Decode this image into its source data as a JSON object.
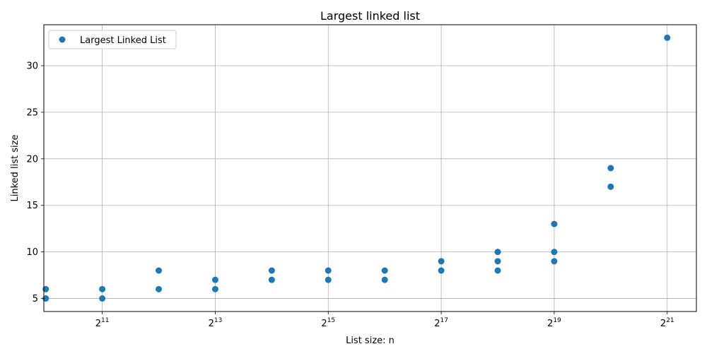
{
  "chart_data": {
    "type": "scatter",
    "title": "Largest linked list",
    "xlabel": "List size: n",
    "ylabel": "Linked list size",
    "x_scale": "log2",
    "xlim": [
      1000,
      3000000
    ],
    "ylim": [
      3.6,
      34.4
    ],
    "x_ticks": [
      2048,
      8192,
      32768,
      131072,
      524288,
      2097152
    ],
    "x_tick_labels": [
      {
        "base": "2",
        "exp": "11"
      },
      {
        "base": "2",
        "exp": "13"
      },
      {
        "base": "2",
        "exp": "15"
      },
      {
        "base": "2",
        "exp": "17"
      },
      {
        "base": "2",
        "exp": "19"
      },
      {
        "base": "2",
        "exp": "21"
      }
    ],
    "y_ticks": [
      5,
      10,
      15,
      20,
      25,
      30
    ],
    "y_tick_labels": [
      "5",
      "10",
      "15",
      "20",
      "25",
      "30"
    ],
    "grid": true,
    "legend_position": "top-left",
    "series": [
      {
        "name": "Largest Linked List",
        "color": "#1f77b4",
        "marker": "circle",
        "points": [
          {
            "x": 1024,
            "y": 5
          },
          {
            "x": 1024,
            "y": 6
          },
          {
            "x": 2048,
            "y": 5
          },
          {
            "x": 2048,
            "y": 6
          },
          {
            "x": 4096,
            "y": 6
          },
          {
            "x": 4096,
            "y": 8
          },
          {
            "x": 8192,
            "y": 6
          },
          {
            "x": 8192,
            "y": 7
          },
          {
            "x": 16384,
            "y": 7
          },
          {
            "x": 16384,
            "y": 8
          },
          {
            "x": 32768,
            "y": 7
          },
          {
            "x": 32768,
            "y": 8
          },
          {
            "x": 65536,
            "y": 7
          },
          {
            "x": 65536,
            "y": 8
          },
          {
            "x": 131072,
            "y": 8
          },
          {
            "x": 131072,
            "y": 9
          },
          {
            "x": 262144,
            "y": 8
          },
          {
            "x": 262144,
            "y": 9
          },
          {
            "x": 262144,
            "y": 10
          },
          {
            "x": 524288,
            "y": 9
          },
          {
            "x": 524288,
            "y": 10
          },
          {
            "x": 524288,
            "y": 13
          },
          {
            "x": 1048576,
            "y": 17
          },
          {
            "x": 1048576,
            "y": 19
          },
          {
            "x": 2097152,
            "y": 33
          }
        ]
      }
    ]
  }
}
